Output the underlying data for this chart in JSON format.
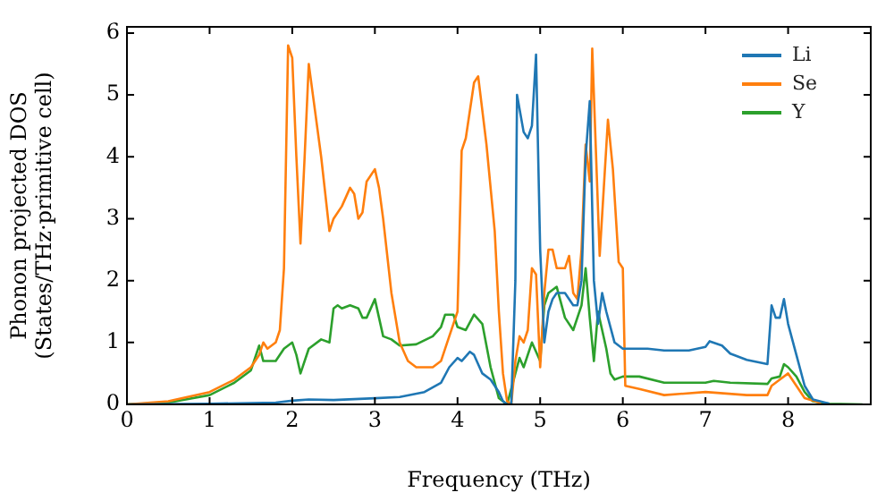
{
  "chart_data": {
    "type": "line",
    "xlabel": "Frequency (THz)",
    "ylabel": "Phonon projected DOS\n(States/THz·primitive cell)",
    "xlim": [
      0,
      9
    ],
    "ylim": [
      0,
      6.1
    ],
    "xticks": [
      0,
      1,
      2,
      3,
      4,
      5,
      6,
      7,
      8
    ],
    "yticks": [
      0,
      1,
      2,
      3,
      4,
      5,
      6
    ],
    "grid": false,
    "legend": "top right",
    "marker": "none",
    "line_style": "solid",
    "series": [
      {
        "name": "Li",
        "color": "#1f77b4",
        "x": [
          0,
          1.0,
          1.8,
          2.0,
          2.2,
          2.5,
          3.0,
          3.3,
          3.6,
          3.8,
          3.9,
          4.0,
          4.05,
          4.15,
          4.2,
          4.3,
          4.4,
          4.5,
          4.55,
          4.6,
          4.65,
          4.7,
          4.72,
          4.8,
          4.85,
          4.9,
          4.95,
          5.0,
          5.05,
          5.1,
          5.15,
          5.2,
          5.3,
          5.4,
          5.45,
          5.5,
          5.55,
          5.6,
          5.65,
          5.7,
          5.75,
          5.8,
          5.9,
          6.0,
          6.3,
          6.5,
          6.8,
          7.0,
          7.05,
          7.2,
          7.3,
          7.5,
          7.75,
          7.8,
          7.85,
          7.9,
          7.95,
          8.0,
          8.1,
          8.2,
          8.3,
          8.5
        ],
        "values": [
          0,
          0.01,
          0.03,
          0.06,
          0.08,
          0.07,
          0.1,
          0.12,
          0.2,
          0.35,
          0.6,
          0.75,
          0.7,
          0.85,
          0.8,
          0.5,
          0.4,
          0.2,
          0.05,
          0,
          0,
          2.0,
          5.0,
          4.4,
          4.3,
          4.5,
          5.65,
          2.5,
          1.0,
          1.5,
          1.7,
          1.8,
          1.8,
          1.6,
          1.6,
          2.0,
          4.0,
          4.9,
          2.0,
          1.3,
          1.8,
          1.5,
          1.0,
          0.9,
          0.9,
          0.87,
          0.87,
          0.93,
          1.02,
          0.95,
          0.82,
          0.72,
          0.65,
          1.6,
          1.4,
          1.4,
          1.7,
          1.3,
          0.8,
          0.3,
          0.08,
          0.01
        ]
      },
      {
        "name": "Se",
        "color": "#ff7f0e",
        "x": [
          0,
          0.5,
          1.0,
          1.3,
          1.5,
          1.6,
          1.65,
          1.7,
          1.8,
          1.85,
          1.9,
          1.95,
          2.0,
          2.05,
          2.1,
          2.15,
          2.2,
          2.25,
          2.35,
          2.45,
          2.5,
          2.6,
          2.7,
          2.75,
          2.8,
          2.85,
          2.9,
          3.0,
          3.05,
          3.1,
          3.2,
          3.3,
          3.4,
          3.5,
          3.7,
          3.8,
          3.9,
          4.0,
          4.05,
          4.1,
          4.2,
          4.25,
          4.35,
          4.45,
          4.5,
          4.55,
          4.6,
          4.65,
          4.7,
          4.75,
          4.8,
          4.85,
          4.9,
          4.95,
          5.0,
          5.05,
          5.1,
          5.15,
          5.2,
          5.3,
          5.35,
          5.4,
          5.45,
          5.5,
          5.55,
          5.6,
          5.63,
          5.72,
          5.82,
          5.88,
          5.95,
          6.0,
          6.03,
          6.2,
          6.5,
          7.0,
          7.5,
          7.75,
          7.8,
          7.9,
          8.0,
          8.1,
          8.2,
          8.4
        ],
        "values": [
          0,
          0.05,
          0.2,
          0.4,
          0.6,
          0.8,
          1.0,
          0.9,
          1.0,
          1.2,
          2.2,
          5.8,
          5.6,
          4.0,
          2.6,
          4.0,
          5.5,
          5.0,
          4.0,
          2.8,
          3.0,
          3.2,
          3.5,
          3.4,
          3.0,
          3.1,
          3.6,
          3.8,
          3.5,
          3.0,
          1.8,
          1.0,
          0.7,
          0.6,
          0.6,
          0.7,
          1.1,
          1.5,
          4.1,
          4.3,
          5.2,
          5.3,
          4.2,
          2.8,
          1.5,
          0.5,
          0.05,
          0,
          0.7,
          1.1,
          1.0,
          1.2,
          2.2,
          2.1,
          0.6,
          1.8,
          2.5,
          2.5,
          2.2,
          2.2,
          2.4,
          1.8,
          1.7,
          2.5,
          4.2,
          3.6,
          5.75,
          2.4,
          4.6,
          3.8,
          2.3,
          2.2,
          0.3,
          0.25,
          0.15,
          0.2,
          0.15,
          0.15,
          0.3,
          0.4,
          0.5,
          0.3,
          0.1,
          0.02
        ]
      },
      {
        "name": "Y",
        "color": "#2ca02c",
        "x": [
          0,
          0.5,
          1.0,
          1.3,
          1.5,
          1.6,
          1.65,
          1.8,
          1.9,
          2.0,
          2.05,
          2.1,
          2.2,
          2.35,
          2.45,
          2.5,
          2.55,
          2.6,
          2.7,
          2.8,
          2.85,
          2.9,
          3.0,
          3.05,
          3.1,
          3.2,
          3.3,
          3.5,
          3.7,
          3.8,
          3.85,
          3.95,
          4.0,
          4.1,
          4.2,
          4.3,
          4.4,
          4.5,
          4.6,
          4.7,
          4.75,
          4.8,
          4.9,
          5.0,
          5.05,
          5.1,
          5.2,
          5.3,
          5.4,
          5.5,
          5.55,
          5.6,
          5.65,
          5.7,
          5.75,
          5.8,
          5.85,
          5.9,
          6.0,
          6.2,
          6.5,
          7.0,
          7.1,
          7.3,
          7.75,
          7.8,
          7.9,
          7.95,
          8.0,
          8.1,
          8.2,
          8.3,
          8.5,
          8.9
        ],
        "values": [
          0,
          0.03,
          0.15,
          0.35,
          0.55,
          0.95,
          0.7,
          0.7,
          0.9,
          1.0,
          0.8,
          0.5,
          0.9,
          1.05,
          1.0,
          1.55,
          1.6,
          1.55,
          1.6,
          1.55,
          1.4,
          1.4,
          1.7,
          1.4,
          1.1,
          1.05,
          0.95,
          0.97,
          1.1,
          1.25,
          1.45,
          1.45,
          1.25,
          1.2,
          1.45,
          1.3,
          0.6,
          0.1,
          0,
          0.5,
          0.75,
          0.6,
          1.0,
          0.7,
          1.6,
          1.8,
          1.9,
          1.4,
          1.2,
          1.6,
          2.2,
          1.4,
          0.7,
          1.5,
          1.2,
          0.9,
          0.5,
          0.4,
          0.45,
          0.45,
          0.35,
          0.35,
          0.38,
          0.35,
          0.33,
          0.42,
          0.45,
          0.65,
          0.6,
          0.45,
          0.2,
          0.05,
          0.01,
          0
        ]
      }
    ]
  }
}
